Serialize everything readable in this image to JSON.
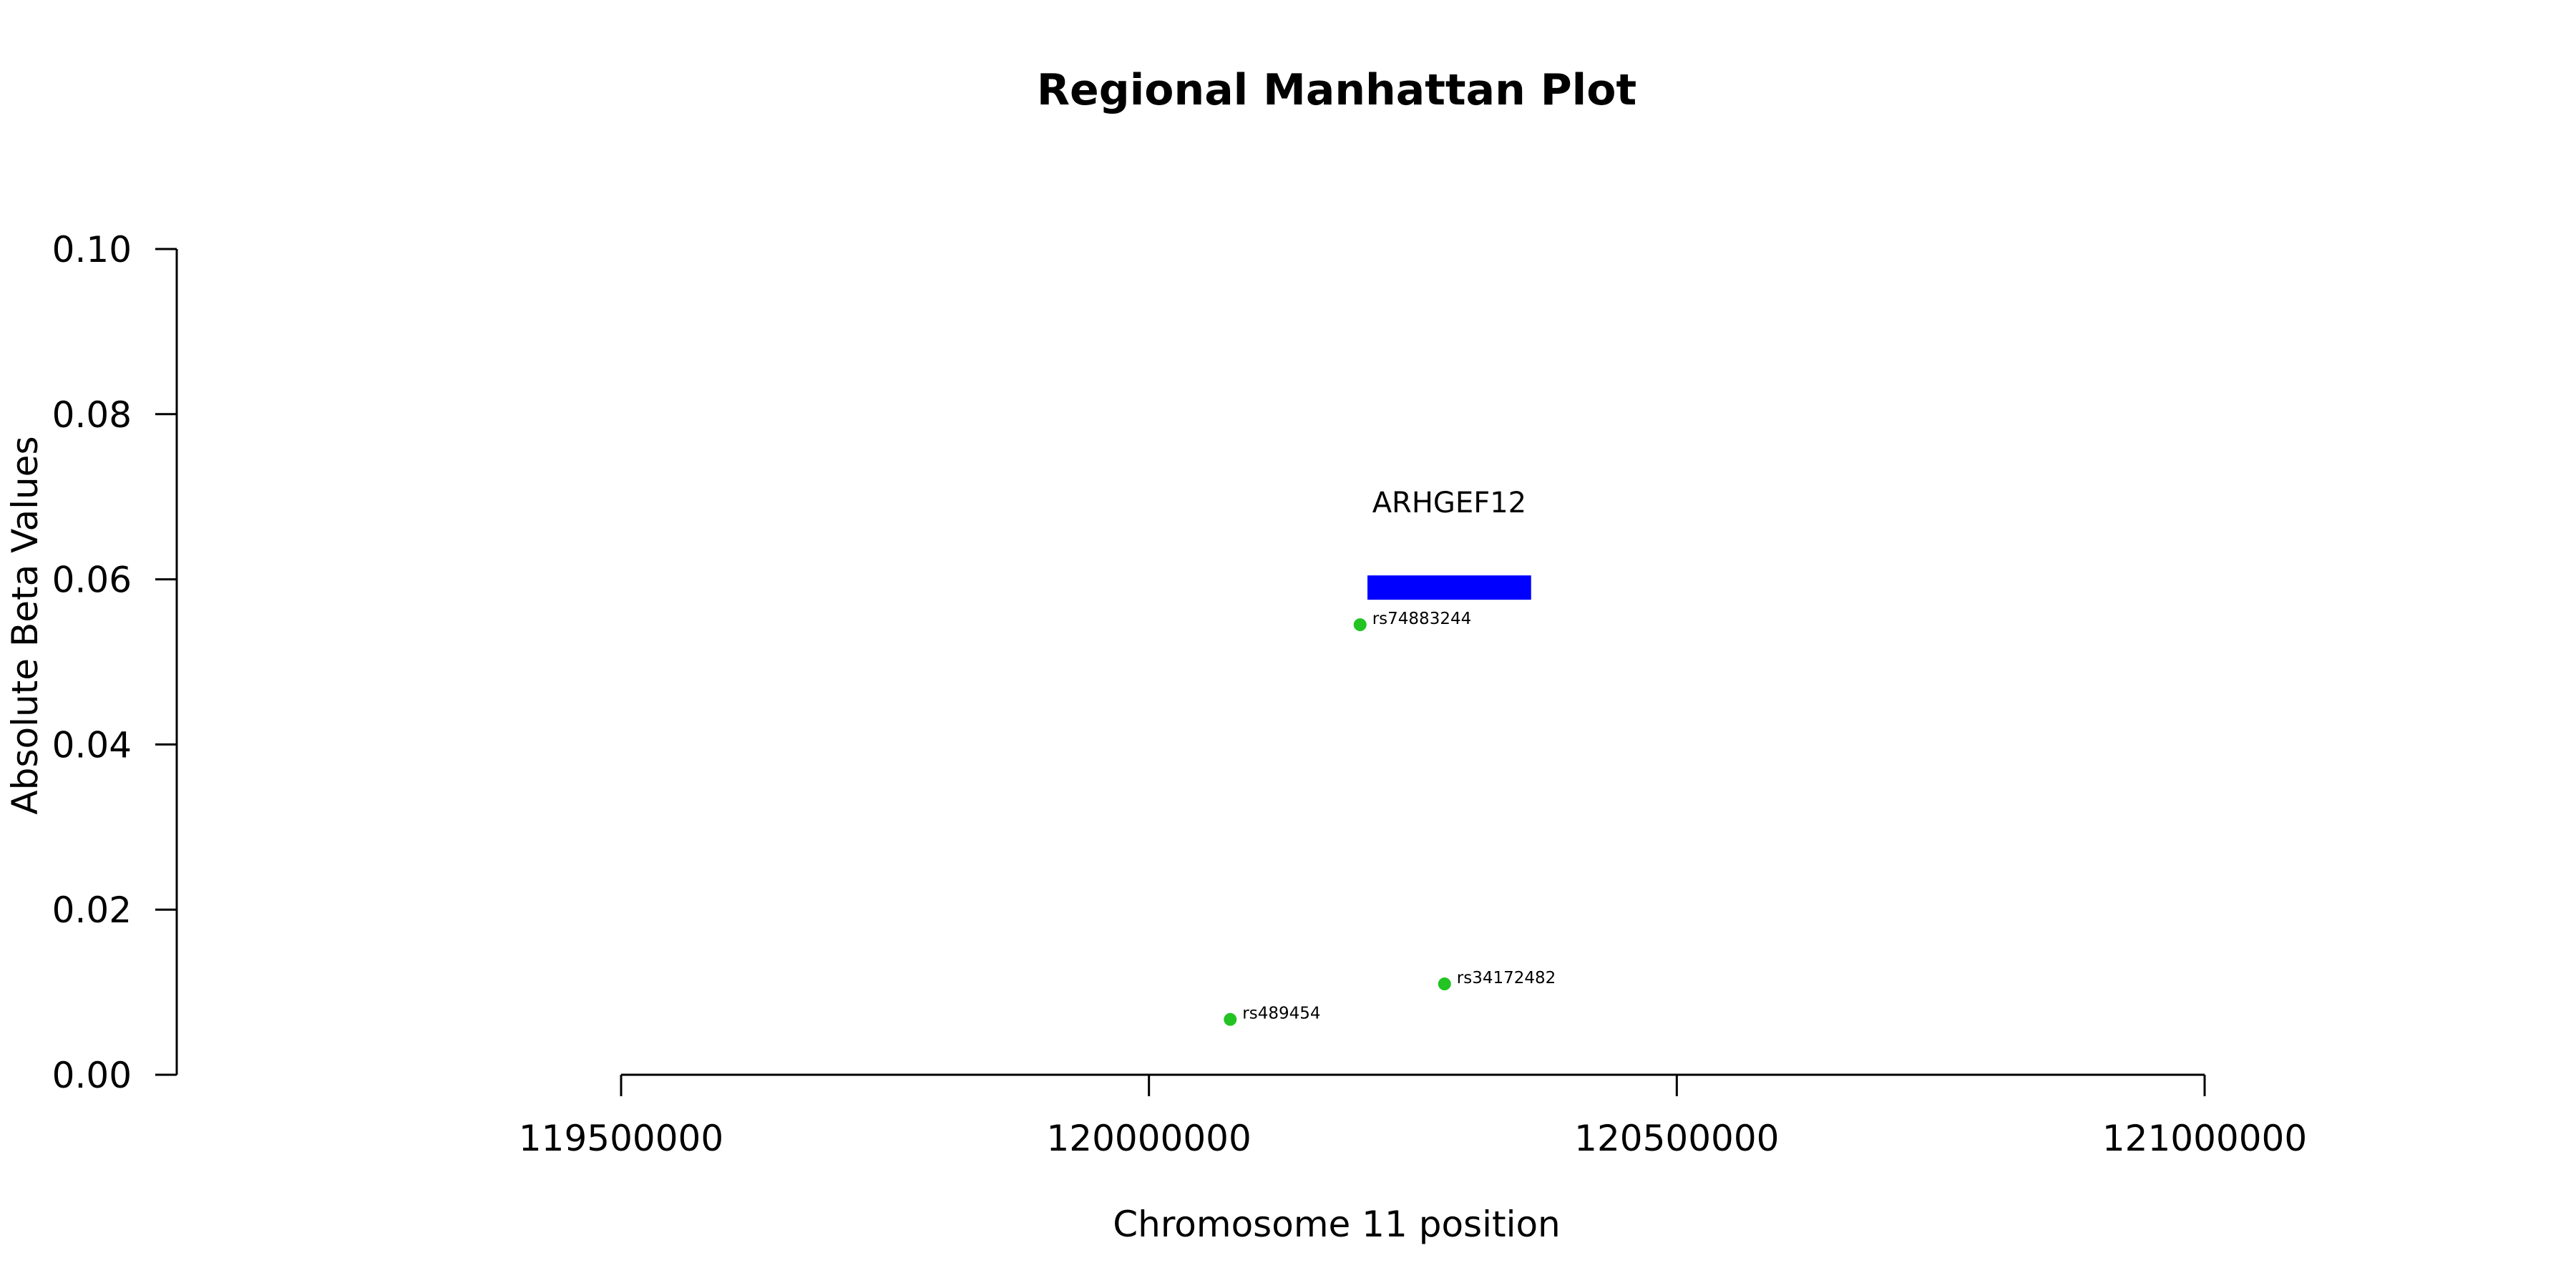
{
  "chart_data": {
    "type": "scatter",
    "title": "Regional Manhattan Plot",
    "xlabel": "Chromosome 11 position",
    "ylabel": "Absolute Beta Values",
    "xlim": [
      119500000,
      121000000
    ],
    "ylim": [
      0,
      0.1
    ],
    "x_ticks": [
      119500000,
      120000000,
      120500000,
      121000000
    ],
    "x_tick_labels": [
      "119500000",
      "120000000",
      "120500000",
      "121000000"
    ],
    "y_ticks": [
      0,
      0.02,
      0.04,
      0.06,
      0.08,
      0.1
    ],
    "y_tick_labels": [
      "0.00",
      "0.02",
      "0.04",
      "0.06",
      "0.08",
      "0.10"
    ],
    "grid": false,
    "points": [
      {
        "label": "rs74883244",
        "x": 120200000,
        "y": 0.0545
      },
      {
        "label": "rs489454",
        "x": 120077000,
        "y": 0.0067
      },
      {
        "label": "rs34172482",
        "x": 120280000,
        "y": 0.011
      }
    ],
    "point_color": "#22c322",
    "genes": [
      {
        "name": "ARHGEF12",
        "start": 120207000,
        "end": 120362000,
        "y": 0.059
      }
    ],
    "gene_color": "#0000ff"
  }
}
